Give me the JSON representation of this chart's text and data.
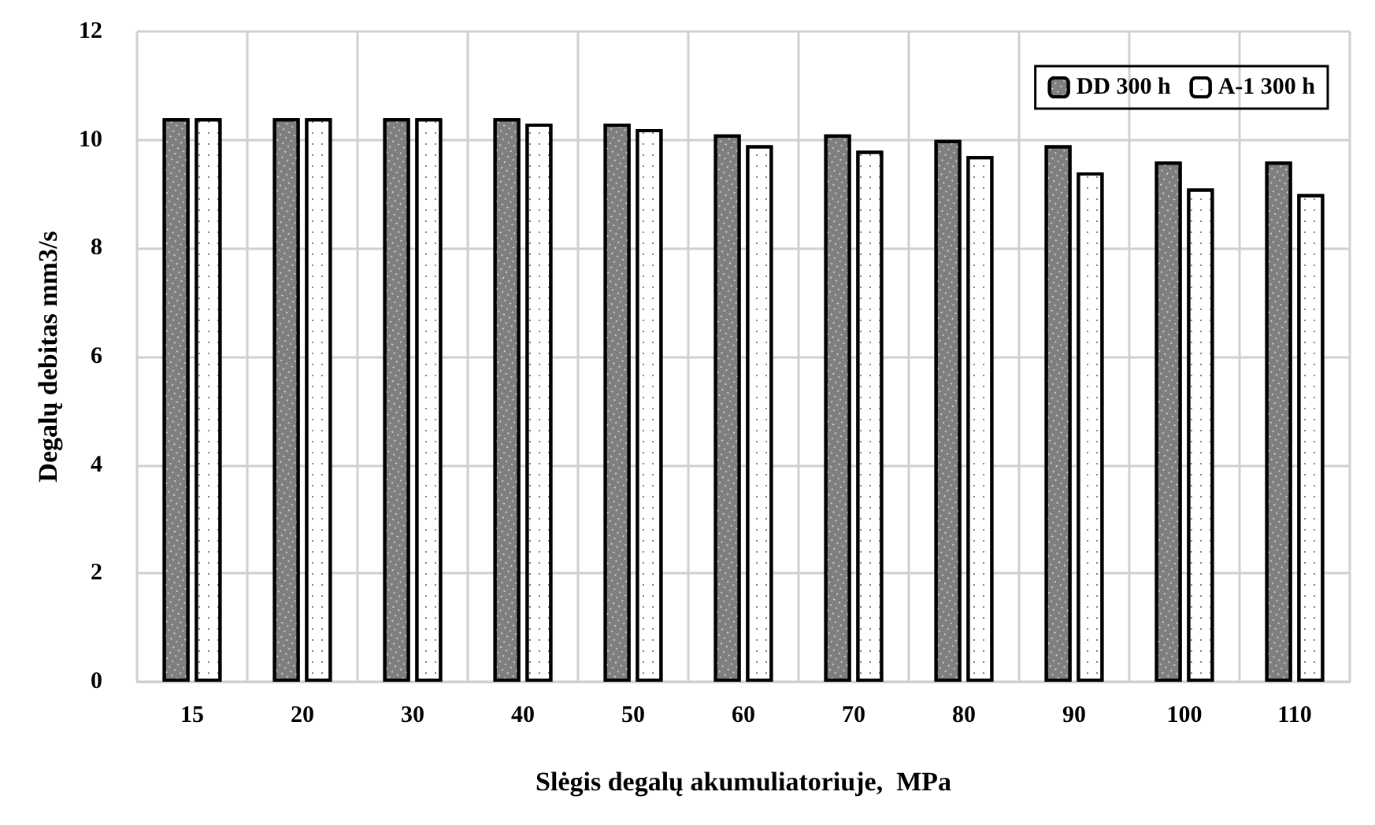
{
  "chart_data": {
    "type": "bar",
    "xlabel": "Slėgis degalų akumuliatoriuje,  MPa",
    "ylabel": "Degalų debitas mm3/s",
    "categories": [
      "15",
      "20",
      "30",
      "40",
      "50",
      "60",
      "70",
      "80",
      "90",
      "100",
      "110"
    ],
    "series": [
      {
        "name": "DD 300 h",
        "color": "#7f7f7f",
        "values": [
          10.4,
          10.4,
          10.4,
          10.4,
          10.3,
          10.1,
          10.1,
          10.0,
          9.9,
          9.6,
          9.6
        ]
      },
      {
        "name": "A-1 300 h",
        "color": "#ffffff",
        "values": [
          10.4,
          10.4,
          10.4,
          10.3,
          10.2,
          9.9,
          9.8,
          9.7,
          9.4,
          9.1,
          9.0
        ]
      }
    ],
    "ylim": [
      0,
      12
    ],
    "yticks": [
      0,
      2,
      4,
      6,
      8,
      10,
      12
    ],
    "grid": true,
    "legend": "top right"
  }
}
